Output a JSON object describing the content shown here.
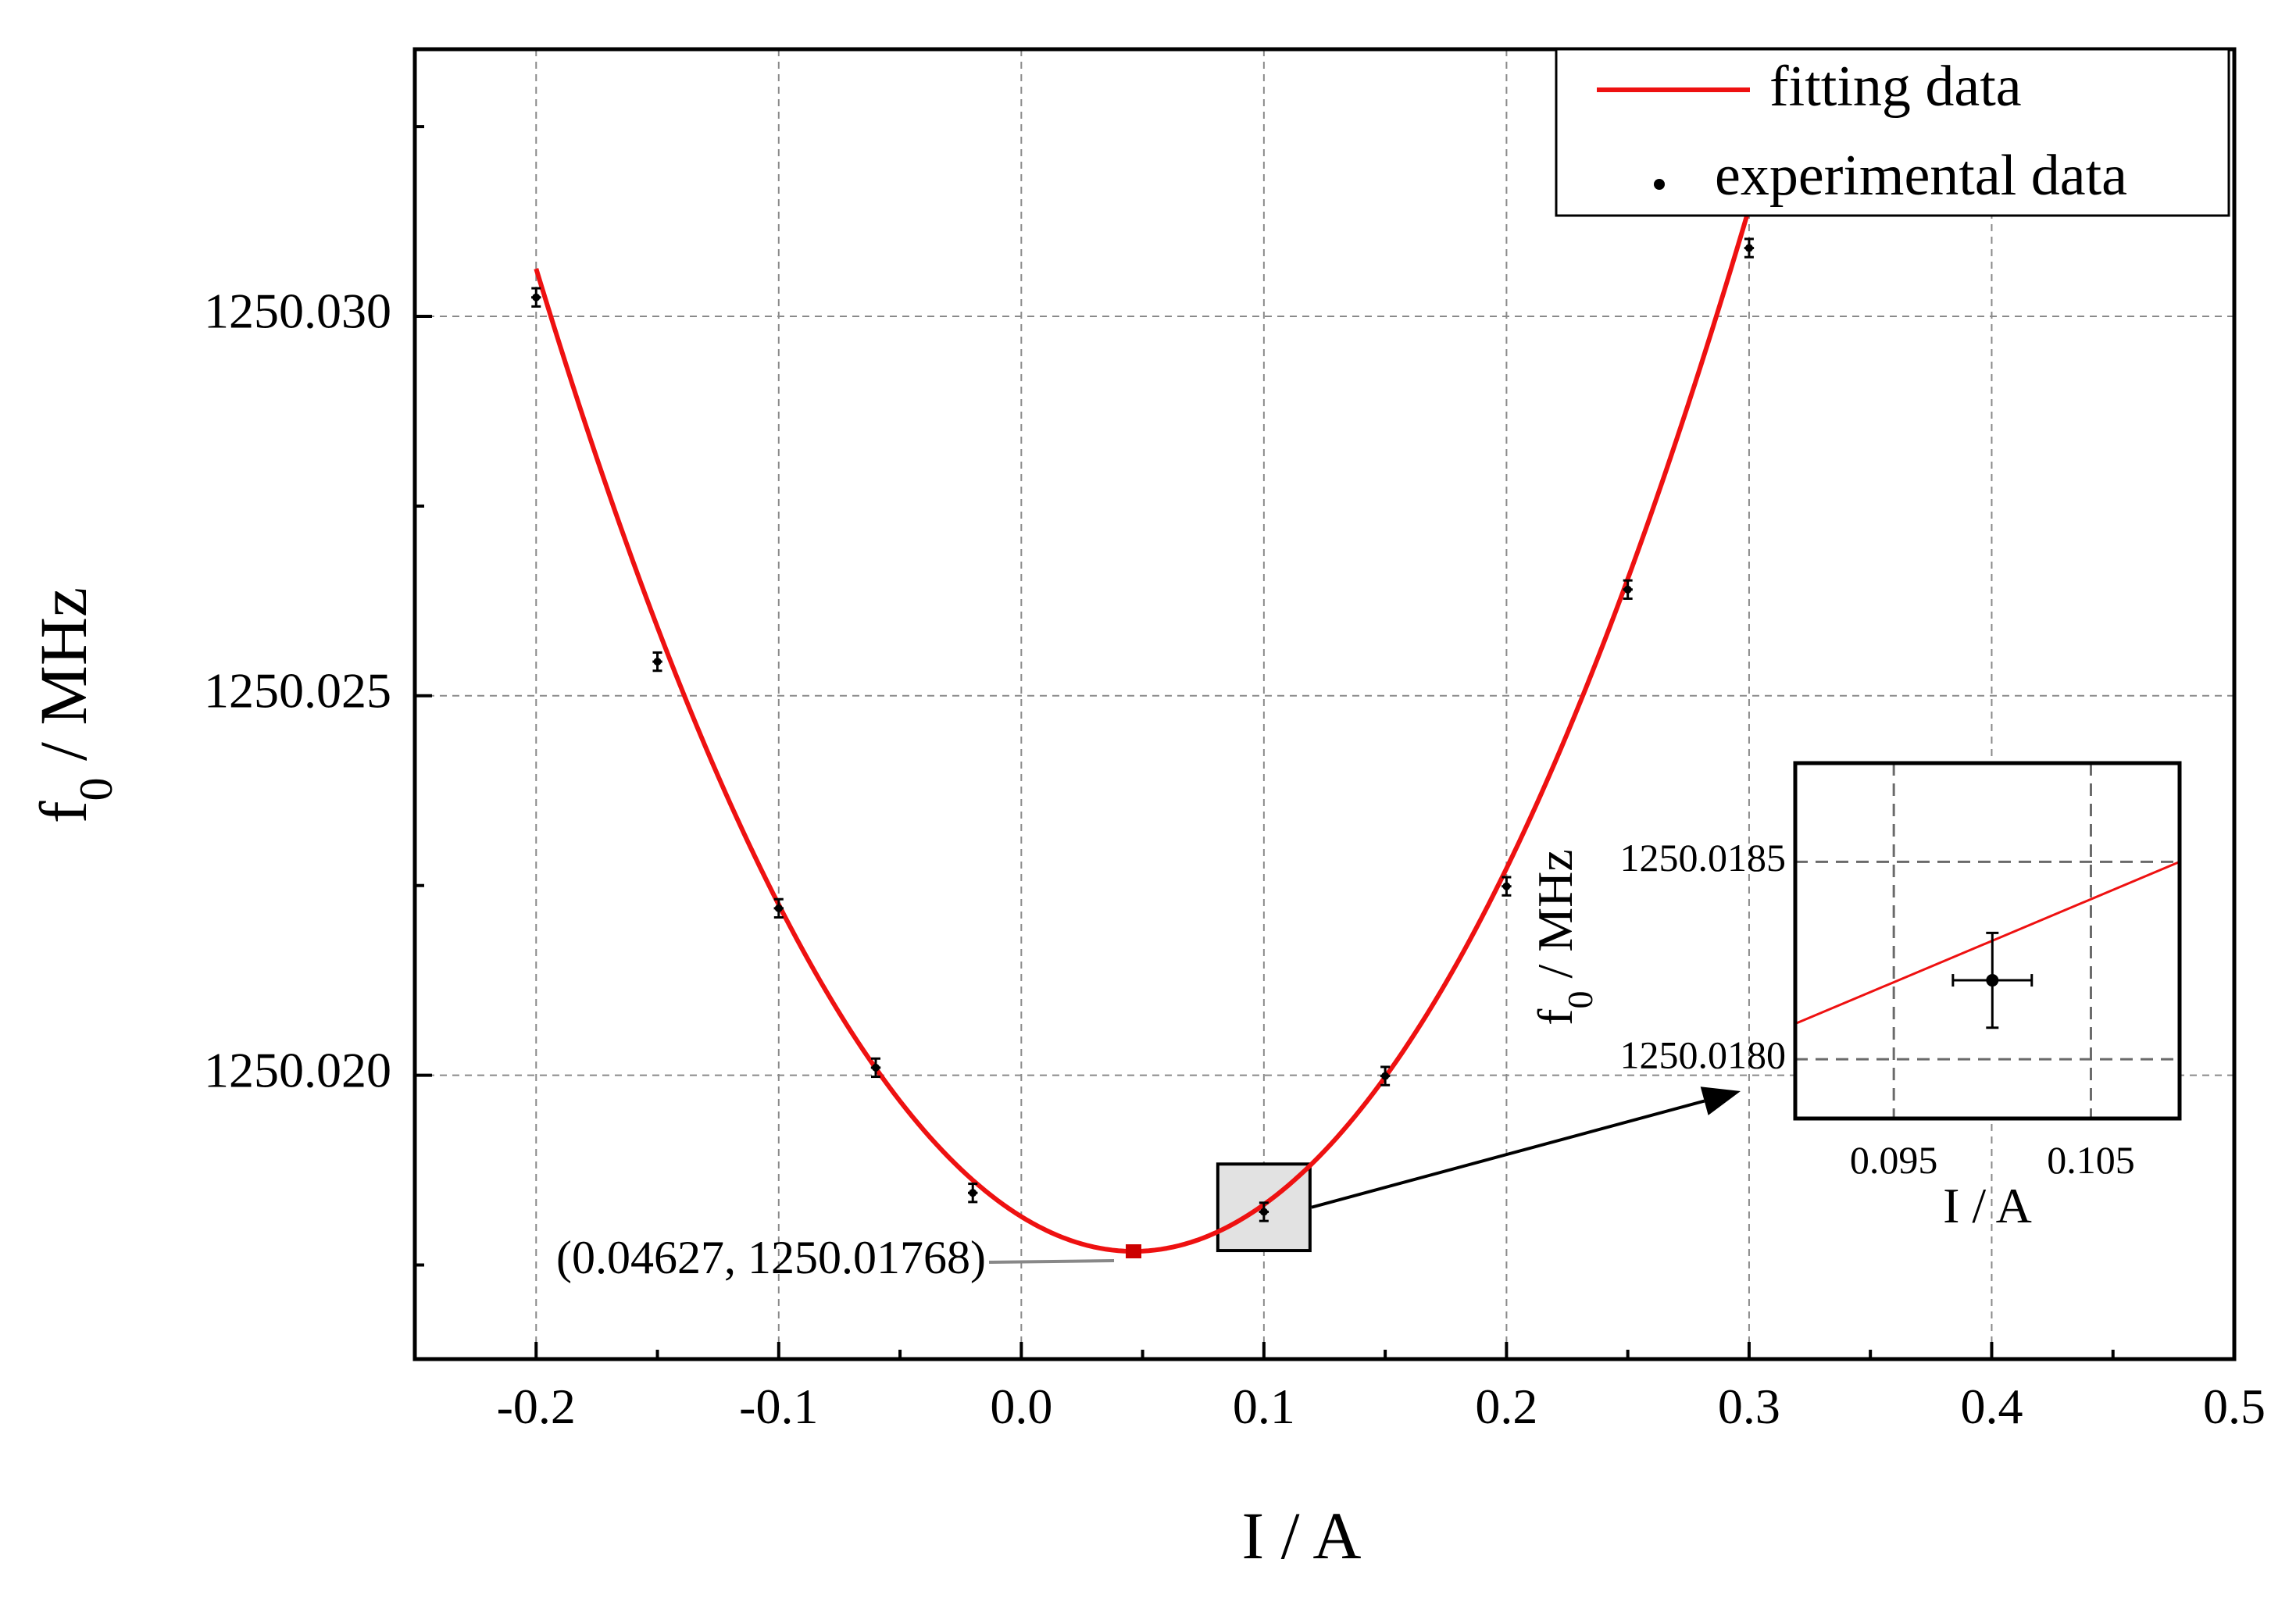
{
  "chart_data": {
    "type": "scatter",
    "xlabel": "I / A",
    "ylabel_main": "f",
    "ylabel_sub": "0",
    "ylabel_rest": " / MHz",
    "xlim": [
      -0.25,
      0.5
    ],
    "ylim": [
      1250.01626,
      1250.03352
    ],
    "x_ticks": [
      -0.2,
      -0.1,
      0.0,
      0.1,
      0.2,
      0.3,
      0.4,
      0.5
    ],
    "x_tick_labels": [
      "-0.2",
      "-0.1",
      "0.0",
      "0.1",
      "0.2",
      "0.3",
      "0.4",
      "0.5"
    ],
    "x_minor_ticks": [
      -0.15,
      -0.05,
      0.05,
      0.15,
      0.25,
      0.35,
      0.45
    ],
    "y_ticks": [
      1250.02,
      1250.025,
      1250.03
    ],
    "y_tick_labels": [
      "1250.020",
      "1250.025",
      "1250.030"
    ],
    "y_minor_ticks": [
      1250.0175,
      1250.0225,
      1250.0275,
      1250.0325
    ],
    "grid": true,
    "series": [
      {
        "name": "experimental data",
        "kind": "scatter",
        "color": "#000000",
        "x": [
          -0.2,
          -0.15,
          -0.1,
          -0.06,
          -0.02,
          0.1,
          0.15,
          0.2,
          0.25,
          0.3
        ],
        "y": [
          1250.03025,
          1250.02545,
          1250.0222,
          1250.0201,
          1250.01845,
          1250.0182,
          1250.01999,
          1250.02249,
          1250.0264,
          1250.0309
        ],
        "xerr": 0.002,
        "yerr": 0.00012
      },
      {
        "name": "fitting data",
        "kind": "line",
        "color": "#ee1111",
        "model": "quadratic",
        "vertex_x": 0.04627,
        "vertex_y": 1250.01768,
        "curvature": 0.2135,
        "x_range": [
          -0.2,
          0.3
        ]
      }
    ],
    "legend": {
      "position": "top-right",
      "entries": [
        "fitting data",
        "experimental data"
      ]
    },
    "annotation": {
      "text": "(0.04627, 1250.01768)",
      "x": 0.04627,
      "y": 1250.01768,
      "marker_color": "#cc0000"
    },
    "zoom_region": {
      "xlim": [
        0.081,
        0.119
      ],
      "ylim": [
        1250.01769,
        1250.01883
      ]
    },
    "inset": {
      "xlabel": "I / A",
      "ylabel_main": "f",
      "ylabel_sub": "0",
      "ylabel_rest": " / MHz",
      "xlim": [
        0.09,
        0.1095
      ],
      "ylim": [
        1250.01785,
        1250.01875
      ],
      "x_ticks": [
        0.095,
        0.105
      ],
      "x_tick_labels": [
        "0.095",
        "0.105"
      ],
      "y_ticks": [
        1250.018,
        1250.0185
      ],
      "y_tick_labels": [
        "1250.0180",
        "1250.0185"
      ],
      "point": {
        "x": 0.1,
        "y": 1250.0182,
        "xerr": 0.002,
        "yerr": 0.00012
      },
      "curve": {
        "x1": 0.09,
        "y1": 1250.01809,
        "x2": 0.1095,
        "y2": 1250.0185
      }
    }
  }
}
